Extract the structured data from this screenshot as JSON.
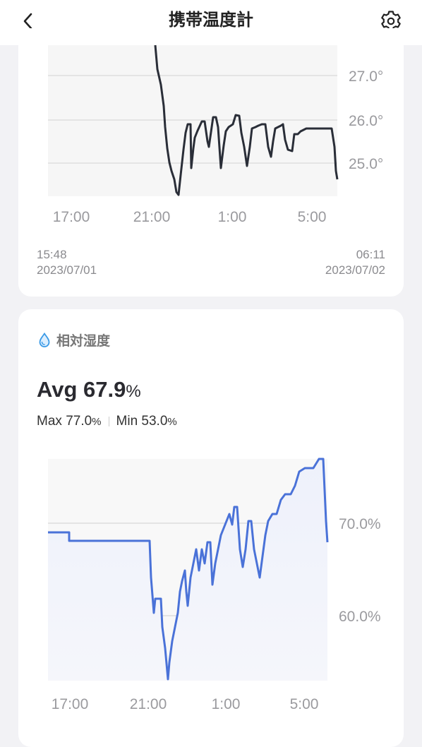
{
  "header": {
    "title": "携帯温度計"
  },
  "temp_chart": {
    "y_ticks": [
      "27.0°",
      "26.0°",
      "25.0°"
    ],
    "x_ticks": [
      "17:00",
      "21:00",
      "1:00",
      "5:00"
    ],
    "range_start": {
      "time": "15:48",
      "date": "2023/07/01"
    },
    "range_end": {
      "time": "06:11",
      "date": "2023/07/02"
    },
    "line_color": "#2a2e38"
  },
  "humidity": {
    "title": "相対湿度",
    "avg_label": "Avg",
    "avg_value": "67.9",
    "unit": "%",
    "max_label": "Max",
    "max_value": "77.0",
    "min_label": "Min",
    "min_value": "53.0",
    "y_ticks": [
      "70.0%",
      "60.0%"
    ],
    "x_ticks": [
      "17:00",
      "21:00",
      "1:00",
      "5:00"
    ],
    "line_color": "#4a72d8"
  }
}
